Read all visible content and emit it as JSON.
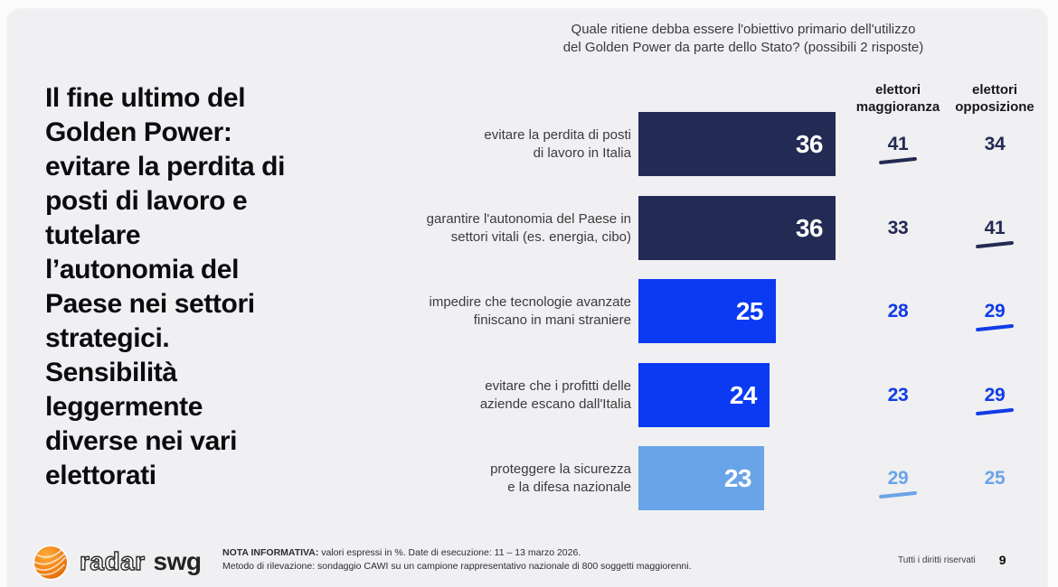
{
  "slide": {
    "title": "Il fine ultimo del\nGolden Power:\nevitare la perdita di\nposti di lavoro e\ntutelare\nl’autonomia del\nPaese nei settori\nstrategici.\nSensibilità\nleggermente\ndiverse nei vari\nelettorati"
  },
  "colors": {
    "navy": "#232a54",
    "bright_blue": "#0a3af2",
    "light_blue": "#6aa4e8",
    "slide_bg": "#f0eff1",
    "logo_orange": "#f08214"
  },
  "chart_data": {
    "type": "bar",
    "question": "Quale ritiene debba essere l'obiettivo primario dell'utilizzo\ndel Golden Power da parte dello Stato? (possibili 2 risposte)",
    "unit": "%",
    "xlim": [
      0,
      36
    ],
    "legend_position": "none",
    "grid": false,
    "columns": {
      "maggioranza": "elettori\nmaggioranza",
      "opposizione": "elettori\nopposizione"
    },
    "rows": [
      {
        "label": "evitare la perdita di posti\ndi lavoro in Italia",
        "value": 36,
        "bar_color": "#232a54",
        "column_color": "#232a54",
        "maggioranza": 41,
        "maggioranza_underlined": true,
        "opposizione": 34,
        "opposizione_underlined": false
      },
      {
        "label": "garantire l'autonomia del Paese in\nsettori vitali (es. energia, cibo)",
        "value": 36,
        "bar_color": "#232a54",
        "column_color": "#232a54",
        "maggioranza": 33,
        "maggioranza_underlined": false,
        "opposizione": 41,
        "opposizione_underlined": true
      },
      {
        "label": "impedire che tecnologie avanzate\nfiniscano in mani straniere",
        "value": 25,
        "bar_color": "#0a3af2",
        "column_color": "#0f3ce8",
        "maggioranza": 28,
        "maggioranza_underlined": false,
        "opposizione": 29,
        "opposizione_underlined": true
      },
      {
        "label": "evitare che i profitti delle\naziende escano dall'Italia",
        "value": 24,
        "bar_color": "#0a3af2",
        "column_color": "#0f3ce8",
        "maggioranza": 23,
        "maggioranza_underlined": false,
        "opposizione": 29,
        "opposizione_underlined": true
      },
      {
        "label": "proteggere la sicurezza\ne la difesa nazionale",
        "value": 23,
        "bar_color": "#6aa4e8",
        "column_color": "#6aa4e8",
        "maggioranza": 29,
        "maggioranza_underlined": true,
        "opposizione": 25,
        "opposizione_underlined": false
      }
    ]
  },
  "footer": {
    "brand_radar": "radar",
    "brand_swg": "swg",
    "nota_bold": "NOTA INFORMATIVA:",
    "nota_rest": " valori espressi in %. Date di esecuzione: 11 – 13 marzo 2026.",
    "nota_line2": "Metodo di rilevazione: sondaggio CAWI su un campione rappresentativo nazionale di 800 soggetti maggiorenni.",
    "rights": "Tutti i diritti riservati",
    "page_number": "9"
  }
}
